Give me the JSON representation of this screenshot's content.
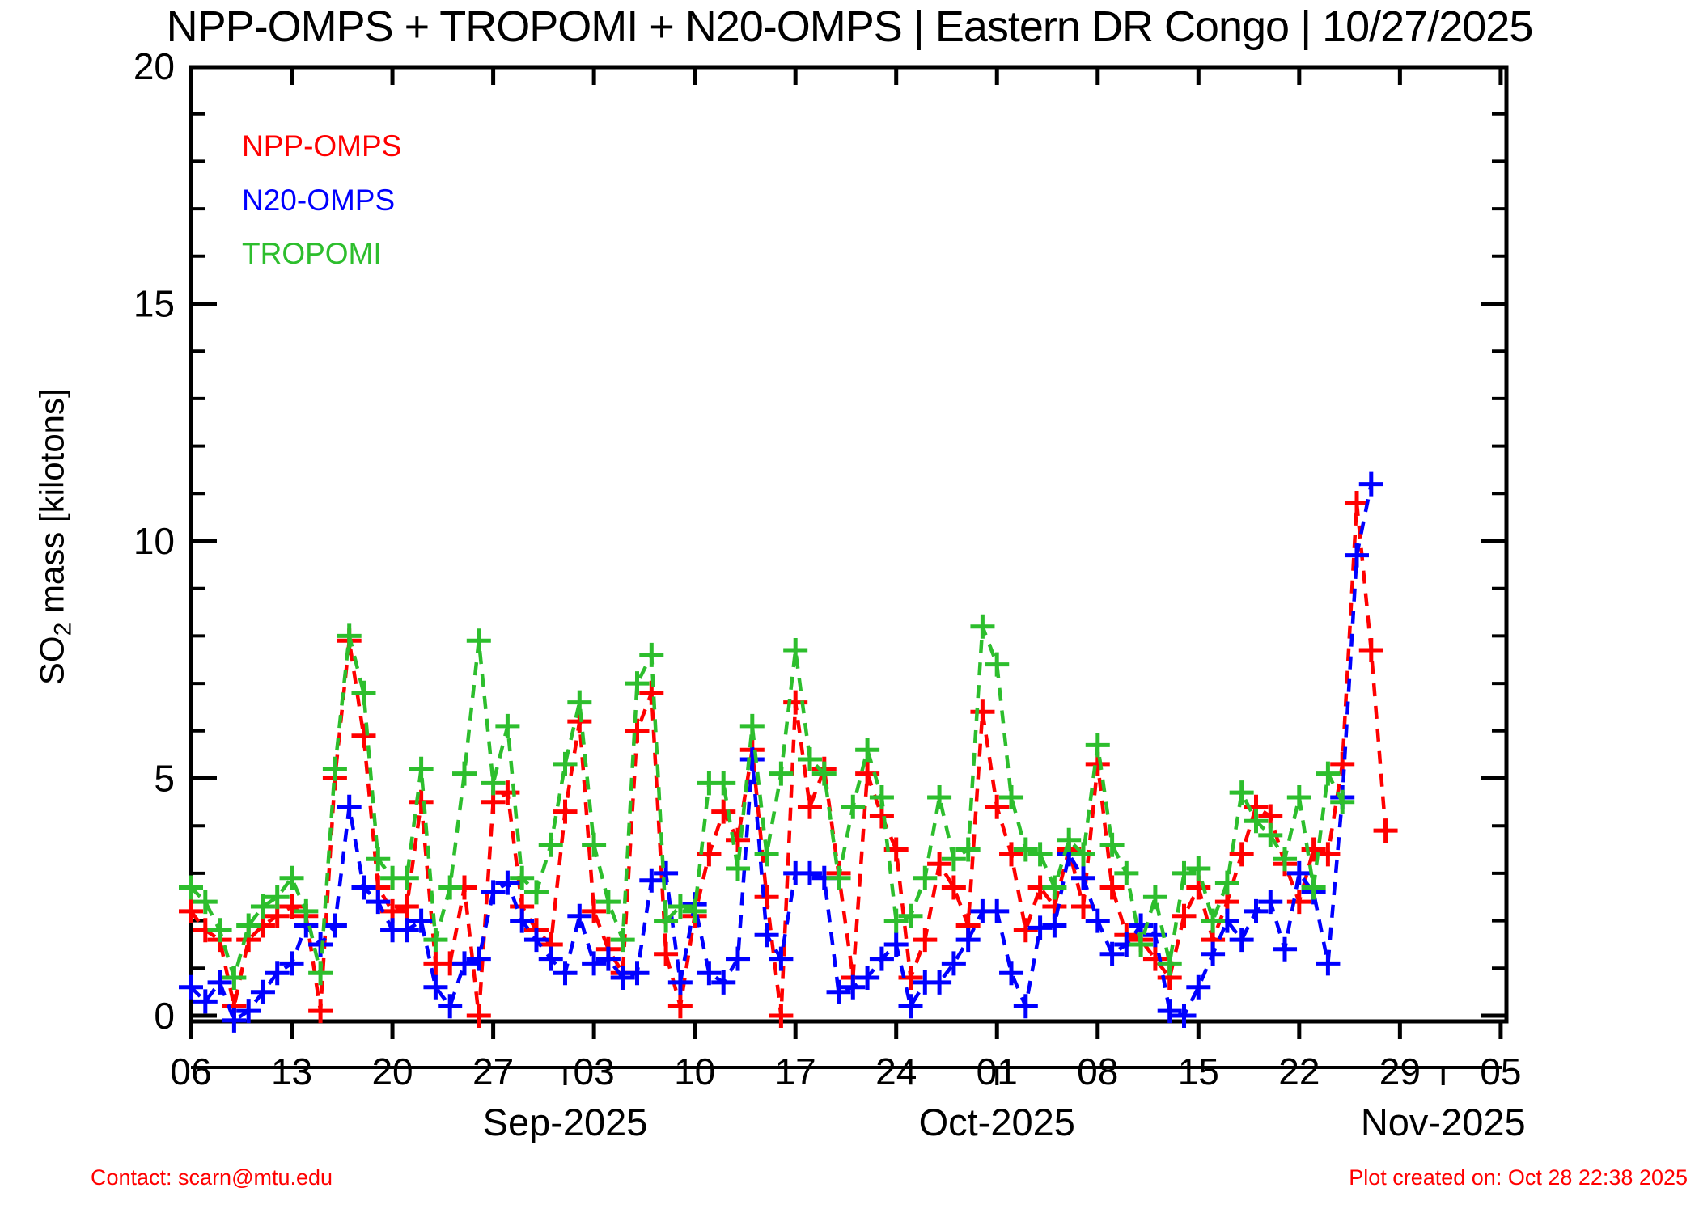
{
  "header": {
    "title": "NPP-OMPS + TROPOMI + N20-OMPS | Eastern DR Congo | 10/27/2025"
  },
  "legend": {
    "items": [
      {
        "label": "NPP-OMPS",
        "color": "#ff0000"
      },
      {
        "label": "N20-OMPS",
        "color": "#0000ff"
      },
      {
        "label": "TROPOMI",
        "color": "#2dbe2d"
      }
    ]
  },
  "footer": {
    "contact": "Contact: scarn@mtu.edu",
    "created": "Plot created on: Oct 28 22:38 2025",
    "color": "#ff0000"
  },
  "chart_data": {
    "type": "line",
    "title": "NPP-OMPS + TROPOMI + N20-OMPS | Eastern DR Congo | 10/27/2025",
    "xlabel": "",
    "ylabel_main": "SO",
    "ylabel_sub": "2",
    "ylabel_rest": " mass [kilotons]",
    "ylim": [
      0,
      20
    ],
    "y_major_ticks": [
      0,
      5,
      10,
      15,
      20
    ],
    "y_minor_tick_step": 1,
    "x_start_date": "2025-08-06",
    "x_tick_labels": [
      "06",
      "13",
      "20",
      "27",
      "03",
      "10",
      "17",
      "24",
      "01",
      "08",
      "15",
      "22",
      "29",
      "05"
    ],
    "x_tick_day_offsets": [
      0,
      7,
      14,
      21,
      28,
      35,
      42,
      49,
      56,
      63,
      70,
      77,
      84,
      91
    ],
    "month_labels": [
      {
        "label": "Sep-2025",
        "day_offset": 26
      },
      {
        "label": "Oct-2025",
        "day_offset": 56
      },
      {
        "label": "Nov-2025",
        "day_offset": 87
      }
    ],
    "grid": false,
    "legend_position": "top-left",
    "line_style": "dashed",
    "marker": "plus",
    "series": [
      {
        "name": "NPP-OMPS",
        "color": "#ff0000",
        "start_day_offset": 0,
        "values": [
          2.2,
          1.8,
          1.6,
          0.2,
          1.6,
          1.9,
          2.1,
          2.3,
          2.1,
          0.1,
          5.0,
          7.9,
          5.9,
          2.7,
          2.2,
          2.3,
          4.5,
          1.1,
          1.1,
          2.7,
          0.0,
          4.5,
          4.7,
          2.3,
          1.8,
          1.5,
          4.3,
          6.2,
          2.2,
          1.4,
          0.9,
          6.0,
          6.8,
          1.3,
          0.2,
          2.1,
          3.4,
          4.3,
          3.7,
          5.6,
          2.5,
          0.0,
          6.6,
          4.4,
          5.2,
          3.0,
          0.8,
          5.1,
          4.2,
          3.5,
          0.8,
          1.6,
          3.2,
          2.7,
          1.9,
          6.4,
          4.4,
          3.4,
          1.8,
          2.7,
          2.3,
          3.5,
          2.3,
          5.3,
          2.7,
          1.7,
          1.6,
          1.2,
          0.8,
          2.1,
          2.7,
          1.6,
          2.4,
          3.4,
          4.4,
          4.2,
          3.2,
          2.4,
          3.5,
          3.4,
          5.3,
          10.8,
          7.7,
          3.9
        ]
      },
      {
        "name": "N20-OMPS",
        "color": "#0000ff",
        "start_day_offset": 0,
        "values": [
          0.6,
          0.3,
          0.7,
          -0.1,
          0.1,
          0.5,
          0.9,
          1.1,
          1.9,
          1.5,
          1.9,
          4.4,
          2.7,
          2.4,
          1.8,
          1.8,
          2.0,
          0.6,
          0.2,
          1.1,
          1.2,
          2.6,
          2.8,
          2.0,
          1.6,
          1.2,
          0.9,
          2.1,
          1.1,
          1.2,
          0.8,
          0.9,
          2.85,
          3.0,
          0.7,
          2.35,
          0.9,
          0.7,
          1.2,
          5.4,
          1.7,
          1.2,
          3.0,
          3.0,
          2.9,
          0.5,
          0.6,
          0.8,
          1.2,
          1.5,
          0.2,
          0.7,
          0.7,
          1.1,
          1.6,
          2.2,
          2.2,
          0.9,
          0.2,
          1.85,
          1.9,
          3.4,
          2.9,
          2.0,
          1.3,
          1.5,
          1.9,
          1.7,
          0.1,
          0.0,
          0.6,
          1.3,
          2.0,
          1.6,
          2.2,
          2.4,
          1.4,
          3.0,
          2.6,
          1.1,
          4.6,
          9.7,
          11.2
        ]
      },
      {
        "name": "TROPOMI",
        "color": "#2dbe2d",
        "start_day_offset": 0,
        "values": [
          2.7,
          2.4,
          1.8,
          0.8,
          1.9,
          2.3,
          2.5,
          2.9,
          2.2,
          0.9,
          5.2,
          8.0,
          6.8,
          3.3,
          2.9,
          2.9,
          5.2,
          1.6,
          2.7,
          5.1,
          7.9,
          4.9,
          6.1,
          2.9,
          2.6,
          3.6,
          5.3,
          6.6,
          3.6,
          2.4,
          1.6,
          7.0,
          7.6,
          2.0,
          2.3,
          2.2,
          4.9,
          4.9,
          3.1,
          6.1,
          3.4,
          5.1,
          7.7,
          5.4,
          5.1,
          2.9,
          4.4,
          5.6,
          4.6,
          2.0,
          2.1,
          2.9,
          4.6,
          3.3,
          3.5,
          8.2,
          7.4,
          4.6,
          3.5,
          3.4,
          2.7,
          3.7,
          3.4,
          5.7,
          3.6,
          3.0,
          1.5,
          2.5,
          1.1,
          3.0,
          3.1,
          2.0,
          2.8,
          4.7,
          4.1,
          3.8,
          3.3,
          4.6,
          2.7,
          5.1,
          4.5
        ]
      }
    ]
  }
}
